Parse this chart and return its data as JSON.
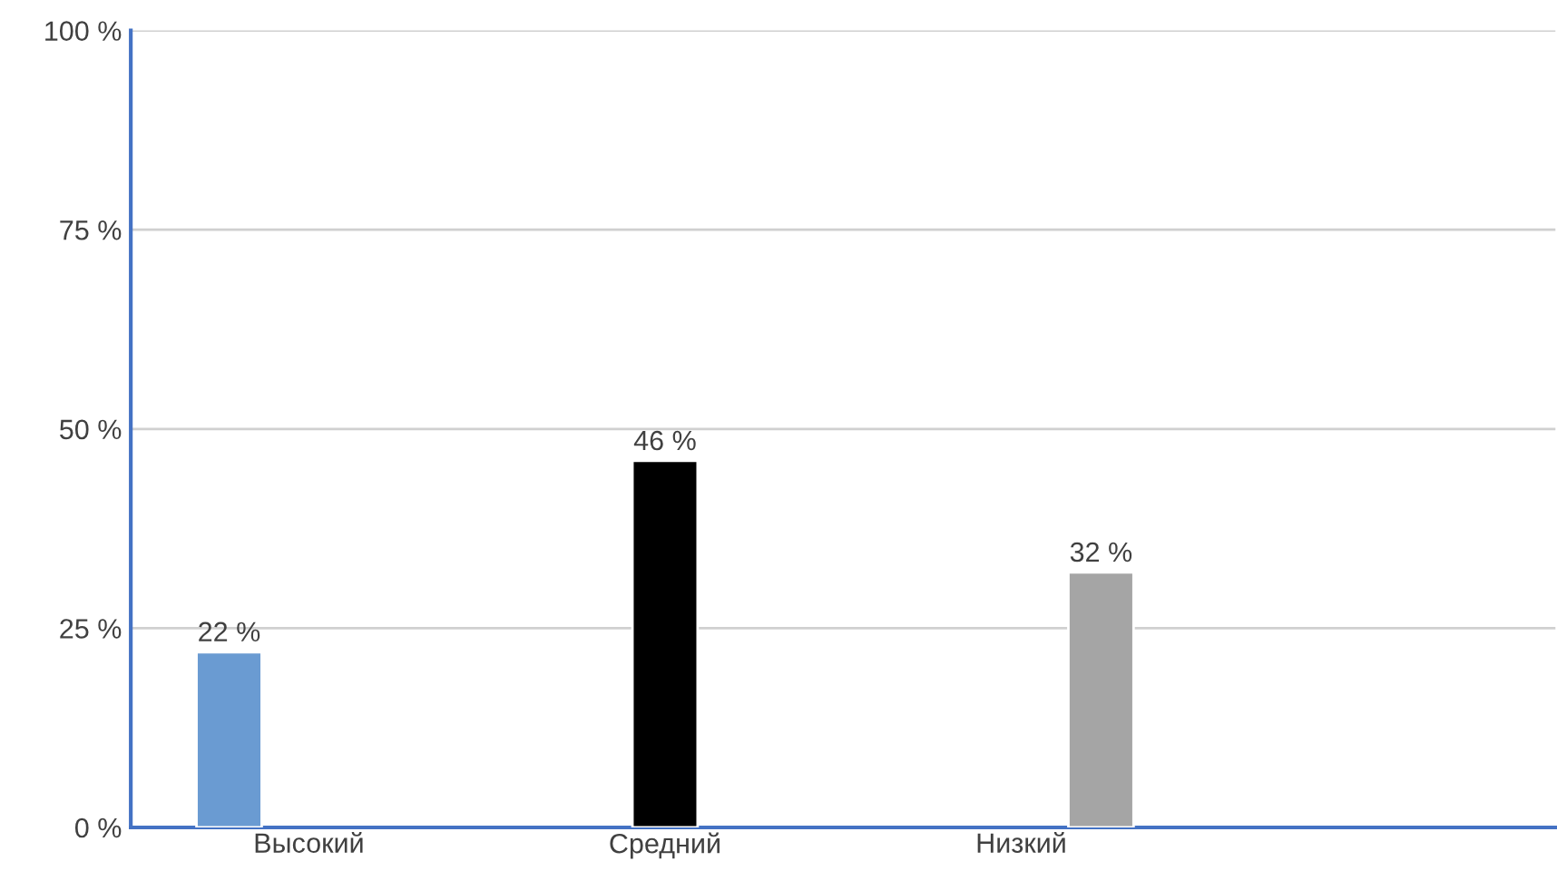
{
  "chart_data": {
    "type": "bar",
    "categories": [
      "Высокий",
      "Средний",
      "Низкий",
      null
    ],
    "series": [
      {
        "color": "#6a9bd2",
        "values": [
          22,
          null,
          null,
          null
        ],
        "value_labels": [
          "22 %",
          null,
          null,
          null
        ]
      },
      {
        "color": "#000000",
        "values": [
          null,
          46,
          null,
          null
        ],
        "value_labels": [
          null,
          "46 %",
          null,
          null
        ]
      },
      {
        "color": "#a5a5a5",
        "values": [
          null,
          null,
          32,
          null
        ],
        "value_labels": [
          null,
          null,
          "32 %",
          null
        ]
      }
    ],
    "ylim": [
      0,
      100
    ],
    "yticks": [
      {
        "value": 0,
        "label": "0 %"
      },
      {
        "value": 25,
        "label": "25 %"
      },
      {
        "value": 50,
        "label": "50 %"
      },
      {
        "value": 75,
        "label": "75 %"
      },
      {
        "value": 100,
        "label": "100 %"
      }
    ],
    "grid": "y",
    "legend": false
  }
}
